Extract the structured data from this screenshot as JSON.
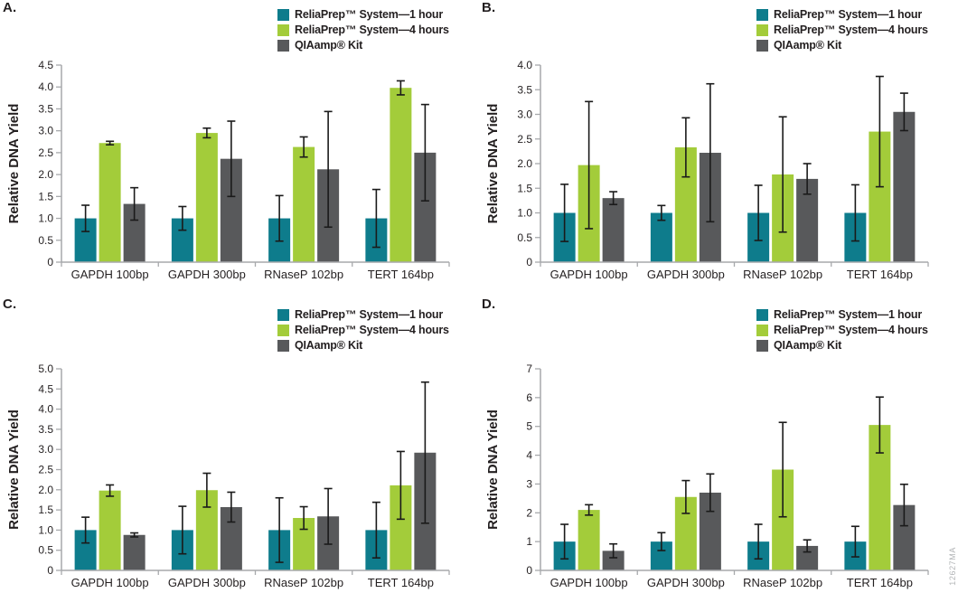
{
  "figure": {
    "watermark": "12627MA"
  },
  "legend": {
    "position": "top-right",
    "items": [
      {
        "label": "ReliaPrep™ System—1 hour",
        "color": "#0e7c8c"
      },
      {
        "label": "ReliaPrep™ System—4 hours",
        "color": "#a3cc3a"
      },
      {
        "label": "QIAamp® Kit",
        "color": "#58595b"
      }
    ]
  },
  "style_colors": {
    "axis": "#a7a9ac",
    "error_bar": "#1a1a1a",
    "text": "#231f20",
    "watermark_text": "#b2b4b6"
  },
  "chart_data": [
    {
      "type": "bar",
      "panel_label": "A.",
      "ylabel": "Relative DNA Yield",
      "categories": [
        "GAPDH 100bp",
        "GAPDH 300bp",
        "RNaseP 102bp",
        "TERT 164bp"
      ],
      "ylim": [
        0,
        4.5
      ],
      "ytick_step": 0.5,
      "ytick_decimals": 1,
      "grid": false,
      "legend_position": "top-right",
      "series": [
        {
          "name": "ReliaPrep™ System—1 hour",
          "values": [
            1.0,
            1.0,
            1.0,
            1.0
          ],
          "errors": [
            0.3,
            0.27,
            0.52,
            0.66
          ]
        },
        {
          "name": "ReliaPrep™ System—4 hours",
          "values": [
            2.72,
            2.95,
            2.63,
            3.98
          ],
          "errors": [
            0.04,
            0.11,
            0.23,
            0.16
          ]
        },
        {
          "name": "QIAamp® Kit",
          "values": [
            1.33,
            2.36,
            2.12,
            2.5
          ],
          "errors": [
            0.37,
            0.86,
            1.32,
            1.1
          ]
        }
      ]
    },
    {
      "type": "bar",
      "panel_label": "B.",
      "ylabel": "Relative DNA Yield",
      "categories": [
        "GAPDH 100bp",
        "GAPDH 300bp",
        "RNaseP 102bp",
        "TERT 164bp"
      ],
      "ylim": [
        0,
        4.0
      ],
      "ytick_step": 0.5,
      "ytick_decimals": 1,
      "grid": false,
      "legend_position": "top-right",
      "series": [
        {
          "name": "ReliaPrep™ System—1 hour",
          "values": [
            1.0,
            1.0,
            1.0,
            1.0
          ],
          "errors": [
            0.58,
            0.15,
            0.56,
            0.57
          ]
        },
        {
          "name": "ReliaPrep™ System—4 hours",
          "values": [
            1.97,
            2.33,
            1.78,
            2.65
          ],
          "errors": [
            1.29,
            0.6,
            1.17,
            1.12
          ]
        },
        {
          "name": "QIAamp® Kit",
          "values": [
            1.3,
            2.22,
            1.69,
            3.05
          ],
          "errors": [
            0.13,
            1.4,
            0.31,
            0.38
          ]
        }
      ]
    },
    {
      "type": "bar",
      "panel_label": "C.",
      "ylabel": "Relative DNA Yield",
      "categories": [
        "GAPDH 100bp",
        "GAPDH 300bp",
        "RNaseP 102bp",
        "TERT 164bp"
      ],
      "ylim": [
        0,
        5.0
      ],
      "ytick_step": 0.5,
      "ytick_decimals": 1,
      "grid": false,
      "legend_position": "top-right",
      "series": [
        {
          "name": "ReliaPrep™ System—1 hour",
          "values": [
            1.0,
            1.0,
            1.0,
            1.0
          ],
          "errors": [
            0.32,
            0.59,
            0.8,
            0.69
          ]
        },
        {
          "name": "ReliaPrep™ System—4 hours",
          "values": [
            1.98,
            1.99,
            1.3,
            2.11
          ],
          "errors": [
            0.14,
            0.42,
            0.28,
            0.84
          ]
        },
        {
          "name": "QIAamp® Kit",
          "values": [
            0.88,
            1.57,
            1.34,
            2.92
          ],
          "errors": [
            0.05,
            0.37,
            0.69,
            1.75
          ]
        }
      ]
    },
    {
      "type": "bar",
      "panel_label": "D.",
      "ylabel": "Relative DNA Yield",
      "categories": [
        "GAPDH 100bp",
        "GAPDH 300bp",
        "RNaseP 102bp",
        "TERT 164bp"
      ],
      "ylim": [
        0,
        7
      ],
      "ytick_step": 1,
      "ytick_decimals": 0,
      "grid": false,
      "legend_position": "top-right",
      "series": [
        {
          "name": "ReliaPrep™ System—1 hour",
          "values": [
            1.0,
            1.0,
            1.0,
            1.0
          ],
          "errors": [
            0.6,
            0.31,
            0.6,
            0.53
          ]
        },
        {
          "name": "ReliaPrep™ System—4 hours",
          "values": [
            2.1,
            2.55,
            3.5,
            5.05
          ],
          "errors": [
            0.18,
            0.57,
            1.64,
            0.97
          ]
        },
        {
          "name": "QIAamp® Kit",
          "values": [
            0.68,
            2.7,
            0.85,
            2.27
          ],
          "errors": [
            0.24,
            0.65,
            0.21,
            0.72
          ]
        }
      ]
    }
  ]
}
